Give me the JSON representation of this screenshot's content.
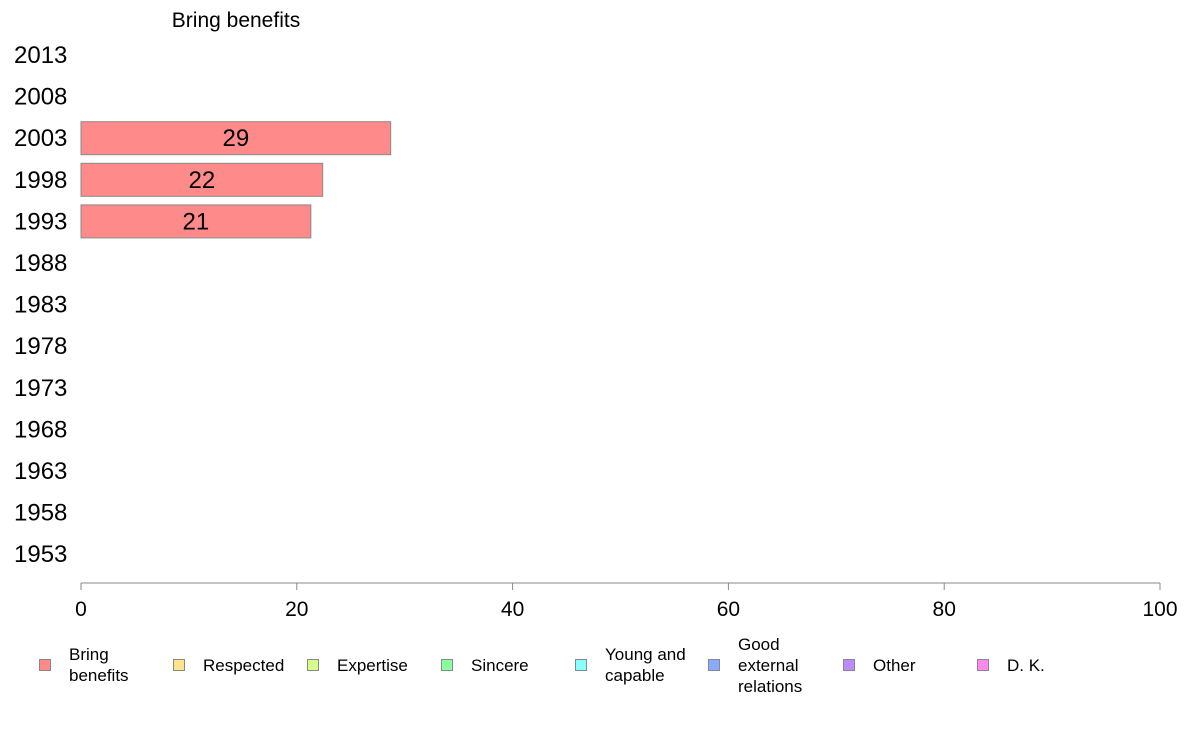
{
  "chart_data": {
    "type": "bar",
    "orientation": "horizontal",
    "title": "Bring benefits",
    "xlabel": "",
    "ylabel": "",
    "xlim": [
      0,
      100
    ],
    "x_ticks": [
      "0",
      "20",
      "40",
      "60",
      "80",
      "100"
    ],
    "categories": [
      "2013",
      "2008",
      "2003",
      "1998",
      "1993",
      "1988",
      "1983",
      "1978",
      "1973",
      "1968",
      "1963",
      "1958",
      "1953"
    ],
    "series": [
      {
        "name": "Bring benefits",
        "color": "#ff8a8a",
        "values": [
          null,
          null,
          28.7,
          22.4,
          21.3,
          null,
          null,
          null,
          null,
          null,
          null,
          null,
          null
        ],
        "labels": [
          "",
          "",
          "29",
          "22",
          "21",
          "",
          "",
          "",
          "",
          "",
          "",
          "",
          ""
        ]
      }
    ],
    "grid": false,
    "legend_position": "bottom"
  },
  "legend": [
    {
      "label": "Bring benefits",
      "lines": [
        "Bring",
        "benefits"
      ],
      "color": "#ff8a8a"
    },
    {
      "label": "Respected",
      "lines": [
        "Respected"
      ],
      "color": "#ffe58a"
    },
    {
      "label": "Expertise",
      "lines": [
        "Expertise"
      ],
      "color": "#d4ff8a"
    },
    {
      "label": "Sincere",
      "lines": [
        "Sincere"
      ],
      "color": "#8affa0"
    },
    {
      "label": "Young and capable",
      "lines": [
        "Young and",
        "capable"
      ],
      "color": "#8affff"
    },
    {
      "label": "Good external relations",
      "lines": [
        "Good",
        "external",
        "relations"
      ],
      "color": "#8aaaff"
    },
    {
      "label": "Other",
      "lines": [
        "Other"
      ],
      "color": "#c08aff"
    },
    {
      "label": "D. K.",
      "lines": [
        "D. K."
      ],
      "color": "#ff8aef"
    }
  ]
}
